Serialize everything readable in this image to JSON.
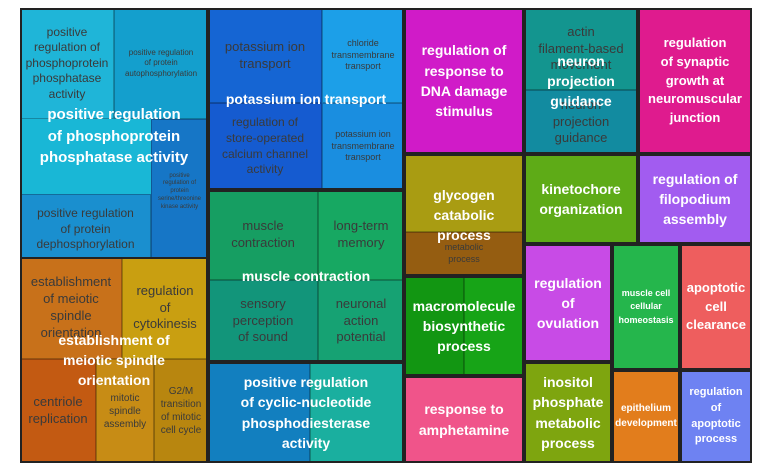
{
  "chart_data": {
    "type": "treemap",
    "groups": [
      {
        "label": "positive regulation\nof phosphoprotein\nphosphatase activity",
        "color": "#00b3d6",
        "tiles": [
          {
            "label": "positive\nregulation of\nphosphoprotein\nphosphatase\nactivity",
            "color": "#1fb5d8"
          },
          {
            "label": "positive regulation\nof protein\nautophosphorylation",
            "color": "#149fcd"
          },
          {
            "label": "positive regulation\nof protein\ndephosphorylation",
            "color": "#1a8fcf"
          },
          {
            "label": "positive\nregulation of\nprotein\nserine/threonine\nkinase activity",
            "color": "#1676c6"
          }
        ]
      },
      {
        "label": "potassium ion transport",
        "color": "#0f5fd4",
        "tiles": [
          {
            "label": "potassium ion\ntransport",
            "color": "#1565d3"
          },
          {
            "label": "chloride\ntransmembrane\ntransport",
            "color": "#1c9fe8"
          },
          {
            "label": "regulation of\nstore-operated\ncalcium channel\nactivity",
            "color": "#155bd0"
          },
          {
            "label": "potassium ion\ntransmembrane\ntransport",
            "color": "#1a8ee0"
          }
        ]
      },
      {
        "label": "regulation of\nresponse to\nDNA damage\nstimulus",
        "color": "#d417c6",
        "tiles": [
          {
            "label": "",
            "color": "#d01bc8"
          }
        ]
      },
      {
        "label": "neuron\nprojection\nguidance",
        "color": "#12938d",
        "tiles": [
          {
            "label": "actin\nfilament-based\nmovement",
            "color": "#13958f"
          },
          {
            "label": "neuron\nprojection\nguidance",
            "color": "#128ba0"
          }
        ]
      },
      {
        "label": "regulation\nof synaptic\ngrowth at\nneuromuscular\njunction",
        "color": "#df1b8e",
        "tiles": [
          {
            "label": "",
            "color": "#df1b8e"
          }
        ]
      },
      {
        "label": "muscle contraction",
        "color": "#17a064",
        "tiles": [
          {
            "label": "muscle\ncontraction",
            "color": "#169e62"
          },
          {
            "label": "long-term\nmemory",
            "color": "#17a862"
          },
          {
            "label": "sensory\nperception\nof sound",
            "color": "#12957a"
          },
          {
            "label": "neuronal\naction\npotential",
            "color": "#16a273"
          }
        ]
      },
      {
        "label": "glycogen\ncatabolic\nprocess",
        "color": "#a89a12",
        "tiles": [
          {
            "label": "",
            "color": "#a99c12"
          },
          {
            "label": "metabolic\nprocess",
            "color": "#955d11"
          }
        ]
      },
      {
        "label": "kinetochore\norganization",
        "color": "#5eab17",
        "tiles": [
          {
            "label": "",
            "color": "#5eab17"
          }
        ]
      },
      {
        "label": "regulation of\nfilopodium\nassembly",
        "color": "#a25cf0",
        "tiles": [
          {
            "label": "",
            "color": "#a25cf0"
          }
        ]
      },
      {
        "label": "establishment of\nmeiotic spindle\norientation",
        "color": "#c46a12",
        "tiles": [
          {
            "label": "establishment\nof meiotic\nspindle\norientation",
            "color": "#c8711a"
          },
          {
            "label": "regulation\nof\ncytokinesis",
            "color": "#c99f11"
          },
          {
            "label": "centriole\nreplication",
            "color": "#c35a12"
          },
          {
            "label": "mitotic\nspindle\nassembly",
            "color": "#c78c15"
          },
          {
            "label": "G2/M\ntransition\nof mitotic\ncell cycle",
            "color": "#b8860f"
          }
        ]
      },
      {
        "label": "macromolecule\nbiosynthetic\nprocess",
        "color": "#12a012",
        "tiles": [
          {
            "label": "",
            "color": "#129612"
          },
          {
            "label": "",
            "color": "#17a417"
          }
        ]
      },
      {
        "label": "regulation\nof\novulation",
        "color": "#c84be6",
        "tiles": [
          {
            "label": "",
            "color": "#c84be6"
          }
        ]
      },
      {
        "label": "muscle cell\ncellular\nhomeostasis",
        "color": "#25b64c",
        "tiles": [
          {
            "label": "",
            "color": "#25b64c"
          }
        ]
      },
      {
        "label": "apoptotic\ncell\nclearance",
        "color": "#ee5e5e",
        "tiles": [
          {
            "label": "",
            "color": "#ee5e5e"
          }
        ]
      },
      {
        "label": "positive regulation\nof cyclic-nucleotide\nphosphodiesterase\nactivity",
        "color": "#129f9a",
        "tiles": [
          {
            "label": "",
            "color": "#127fbf"
          },
          {
            "label": "",
            "color": "#1aaf9f"
          }
        ]
      },
      {
        "label": "response to\namphetamine",
        "color": "#f0548a",
        "tiles": [
          {
            "label": "",
            "color": "#f0548a"
          }
        ]
      },
      {
        "label": "inositol\nphosphate\nmetabolic\nprocess",
        "color": "#7ea50f",
        "tiles": [
          {
            "label": "",
            "color": "#7ea50f"
          }
        ]
      },
      {
        "label": "epithelium\ndevelopment",
        "color": "#e27d1c",
        "tiles": [
          {
            "label": "",
            "color": "#e27d1c"
          }
        ]
      },
      {
        "label": "regulation\nof\napoptotic\nprocess",
        "color": "#6e82f2",
        "tiles": [
          {
            "label": "",
            "color": "#6e82f2"
          }
        ]
      }
    ]
  }
}
